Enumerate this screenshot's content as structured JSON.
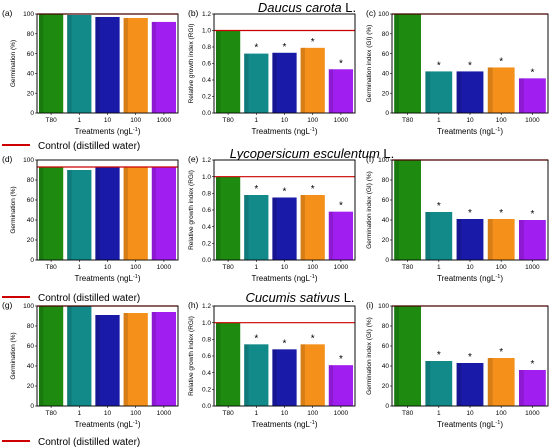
{
  "figure": {
    "species": [
      {
        "name": "Daucus carota",
        "authority": "L."
      },
      {
        "name": "Lycopersicum esculentum",
        "authority": "L."
      },
      {
        "name": "Cucumis sativus",
        "authority": "L."
      }
    ],
    "legend_label": "Control (distilled water)",
    "control_line_color": "#cc0000"
  },
  "chart_data": [
    {
      "panel": "(a)",
      "type": "bar",
      "ylabel": "Germination (%)",
      "xlabel": "Treatments (ngL",
      "xlabel_sup": "-1",
      "xlabel_end": ")",
      "categories": [
        "T80",
        "1",
        "10",
        "100",
        "1000"
      ],
      "values": [
        100,
        99,
        97,
        96,
        92
      ],
      "ylim": [
        0,
        100
      ],
      "yticks": [
        "0",
        "20",
        "40",
        "60",
        "80",
        "100"
      ],
      "control": 100,
      "stars": [
        false,
        false,
        false,
        false,
        false
      ],
      "colors": [
        "#1e8a10",
        "#138a8a",
        "#1a1aa8",
        "#f5901a",
        "#a11ef0"
      ]
    },
    {
      "panel": "(b)",
      "type": "bar",
      "ylabel": "Relative growth index (RGI)",
      "xlabel": "Treatments (ngL",
      "xlabel_sup": "-1",
      "xlabel_end": ")",
      "categories": [
        "T80",
        "1",
        "10",
        "100",
        "1000"
      ],
      "values": [
        1.0,
        0.72,
        0.73,
        0.79,
        0.53
      ],
      "ylim": [
        0,
        1.2
      ],
      "yticks": [
        "0.0",
        "0.2",
        "0.4",
        "0.6",
        "0.8",
        "1.0",
        "1.2"
      ],
      "control": 1.0,
      "stars": [
        false,
        true,
        true,
        true,
        true
      ],
      "colors": [
        "#1e8a10",
        "#138a8a",
        "#1a1aa8",
        "#f5901a",
        "#a11ef0"
      ]
    },
    {
      "panel": "(c)",
      "type": "bar",
      "ylabel": "Germination index (GI) (%)",
      "xlabel": "Treatments (ngL",
      "xlabel_sup": "-1",
      "xlabel_end": ")",
      "categories": [
        "T80",
        "1",
        "10",
        "100",
        "1000"
      ],
      "values": [
        100,
        42,
        42,
        46,
        35
      ],
      "ylim": [
        0,
        100
      ],
      "yticks": [
        "0",
        "20",
        "40",
        "60",
        "80",
        "100"
      ],
      "control": 100,
      "stars": [
        false,
        true,
        true,
        true,
        true
      ],
      "colors": [
        "#1e8a10",
        "#138a8a",
        "#1a1aa8",
        "#f5901a",
        "#a11ef0"
      ]
    },
    {
      "panel": "(d)",
      "type": "bar",
      "ylabel": "Germination (%)",
      "xlabel": "Treatments (ngL",
      "xlabel_sup": "-1",
      "xlabel_end": ")",
      "categories": [
        "T80",
        "1",
        "10",
        "100",
        "1000"
      ],
      "values": [
        93,
        90,
        93,
        93,
        93
      ],
      "ylim": [
        0,
        100
      ],
      "yticks": [
        "0",
        "20",
        "40",
        "60",
        "80",
        "100"
      ],
      "control": 93,
      "stars": [
        false,
        false,
        false,
        false,
        false
      ],
      "colors": [
        "#1e8a10",
        "#138a8a",
        "#1a1aa8",
        "#f5901a",
        "#a11ef0"
      ]
    },
    {
      "panel": "(e)",
      "type": "bar",
      "ylabel": "Relative growth index (RGI)",
      "xlabel": "Treatments (ngL",
      "xlabel_sup": "-1",
      "xlabel_end": ")",
      "categories": [
        "T80",
        "1",
        "10",
        "100",
        "1000"
      ],
      "values": [
        1.0,
        0.78,
        0.75,
        0.78,
        0.58
      ],
      "ylim": [
        0,
        1.2
      ],
      "yticks": [
        "0.0",
        "0.2",
        "0.4",
        "0.6",
        "0.8",
        "1.0",
        "1.2"
      ],
      "control": 1.0,
      "stars": [
        false,
        true,
        true,
        true,
        true
      ],
      "colors": [
        "#1e8a10",
        "#138a8a",
        "#1a1aa8",
        "#f5901a",
        "#a11ef0"
      ]
    },
    {
      "panel": "(f)",
      "type": "bar",
      "ylabel": "Germination index (GI) (%)",
      "xlabel": "Treatments (ngL",
      "xlabel_sup": "-1",
      "xlabel_end": ")",
      "categories": [
        "T80",
        "1",
        "10",
        "100",
        "1000"
      ],
      "values": [
        100,
        48,
        41,
        41,
        40
      ],
      "ylim": [
        0,
        100
      ],
      "yticks": [
        "0",
        "20",
        "40",
        "60",
        "80",
        "100"
      ],
      "control": 100,
      "stars": [
        false,
        true,
        true,
        true,
        true
      ],
      "colors": [
        "#1e8a10",
        "#138a8a",
        "#1a1aa8",
        "#f5901a",
        "#a11ef0"
      ]
    },
    {
      "panel": "(g)",
      "type": "bar",
      "ylabel": "Germination (%)",
      "xlabel": "Treatments (ngL",
      "xlabel_sup": "-1",
      "xlabel_end": ")",
      "categories": [
        "T80",
        "1",
        "10",
        "100",
        "1000"
      ],
      "values": [
        100,
        100,
        91,
        93,
        94
      ],
      "ylim": [
        0,
        100
      ],
      "yticks": [
        "0",
        "20",
        "40",
        "60",
        "80",
        "100"
      ],
      "control": 100,
      "stars": [
        false,
        false,
        false,
        false,
        false
      ],
      "colors": [
        "#1e8a10",
        "#138a8a",
        "#1a1aa8",
        "#f5901a",
        "#a11ef0"
      ]
    },
    {
      "panel": "(h)",
      "type": "bar",
      "ylabel": "Relative growth index (RGI)",
      "xlabel": "Treatments (ngL",
      "xlabel_sup": "-1",
      "xlabel_end": ")",
      "categories": [
        "T80",
        "1",
        "10",
        "100",
        "1000"
      ],
      "values": [
        1.0,
        0.74,
        0.68,
        0.74,
        0.49
      ],
      "ylim": [
        0,
        1.2
      ],
      "yticks": [
        "0.0",
        "0.2",
        "0.4",
        "0.6",
        "0.8",
        "1.0",
        "1.2"
      ],
      "control": 1.0,
      "stars": [
        false,
        true,
        true,
        true,
        true
      ],
      "colors": [
        "#1e8a10",
        "#138a8a",
        "#1a1aa8",
        "#f5901a",
        "#a11ef0"
      ]
    },
    {
      "panel": "(i)",
      "type": "bar",
      "ylabel": "Germination index (GI) (%)",
      "xlabel": "Treatments (ngL",
      "xlabel_sup": "-1",
      "xlabel_end": ")",
      "categories": [
        "T80",
        "1",
        "10",
        "100",
        "1000"
      ],
      "values": [
        100,
        45,
        43,
        48,
        36
      ],
      "ylim": [
        0,
        100
      ],
      "yticks": [
        "0",
        "20",
        "40",
        "60",
        "80",
        "100"
      ],
      "control": 100,
      "stars": [
        false,
        true,
        true,
        true,
        true
      ],
      "colors": [
        "#1e8a10",
        "#138a8a",
        "#1a1aa8",
        "#f5901a",
        "#a11ef0"
      ]
    }
  ]
}
